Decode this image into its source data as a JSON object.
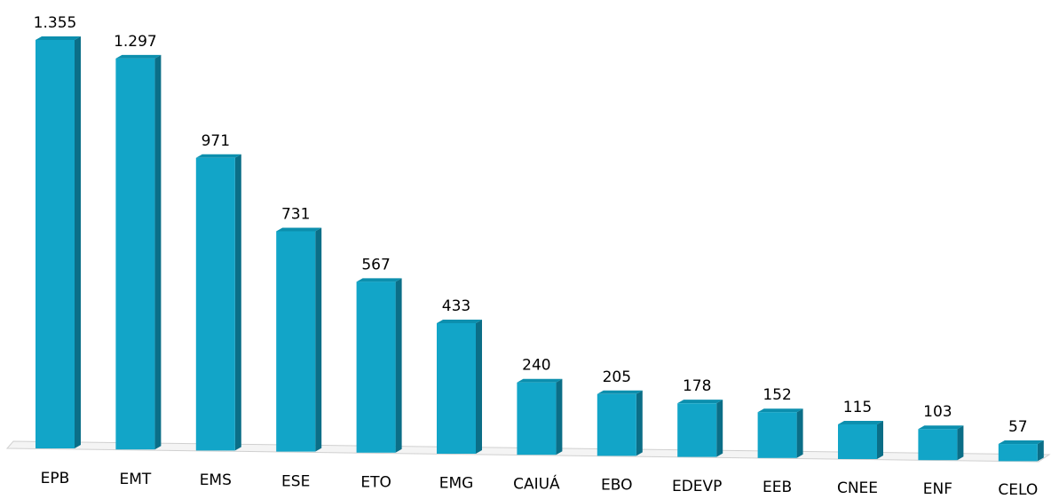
{
  "chart_data": {
    "type": "bar",
    "categories": [
      "EPB",
      "EMT",
      "EMS",
      "ESE",
      "ETO",
      "EMG",
      "CAIUÁ",
      "EBO",
      "EDEVP",
      "EEB",
      "CNEE",
      "ENF",
      "CELO"
    ],
    "values": [
      1355,
      1297,
      971,
      731,
      567,
      433,
      240,
      205,
      178,
      152,
      115,
      103,
      57
    ],
    "value_labels": [
      "1.355",
      "1.297",
      "971",
      "731",
      "567",
      "433",
      "240",
      "205",
      "178",
      "152",
      "115",
      "103",
      "57"
    ],
    "color": "#12a5c8"
  }
}
